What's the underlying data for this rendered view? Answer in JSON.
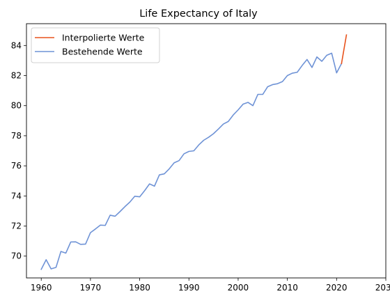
{
  "chart_data": {
    "type": "line",
    "title": "Life Expectancy of Italy",
    "xlabel": "",
    "ylabel": "",
    "xlim": [
      1957.0,
      2030.0
    ],
    "ylim": [
      68.55,
      85.45
    ],
    "xticks": [
      1960,
      1970,
      1980,
      1990,
      2000,
      2010,
      2020,
      2030
    ],
    "yticks": [
      70,
      72,
      74,
      76,
      78,
      80,
      82,
      84
    ],
    "grid": false,
    "legend_position": "top-left",
    "series": [
      {
        "name": "Interpolierte Werte",
        "color": "#e8521c",
        "x": [
          2021,
          2022
        ],
        "y": [
          82.8,
          84.7
        ]
      },
      {
        "name": "Bestehende Werte",
        "color": "#6f93d6",
        "x": [
          1960,
          1961,
          1962,
          1963,
          1964,
          1965,
          1966,
          1967,
          1968,
          1969,
          1970,
          1971,
          1972,
          1973,
          1974,
          1975,
          1976,
          1977,
          1978,
          1979,
          1980,
          1981,
          1982,
          1983,
          1984,
          1985,
          1986,
          1987,
          1988,
          1989,
          1990,
          1991,
          1992,
          1993,
          1994,
          1995,
          1996,
          1997,
          1998,
          1999,
          2000,
          2001,
          2002,
          2003,
          2004,
          2005,
          2006,
          2007,
          2008,
          2009,
          2010,
          2011,
          2012,
          2013,
          2014,
          2015,
          2016,
          2017,
          2018,
          2019,
          2020,
          2021
        ],
        "y": [
          69.12,
          69.76,
          69.15,
          69.25,
          70.31,
          70.2,
          70.94,
          70.95,
          70.78,
          70.8,
          71.56,
          71.8,
          72.06,
          72.04,
          72.72,
          72.65,
          72.96,
          73.29,
          73.59,
          73.98,
          73.94,
          74.35,
          74.8,
          74.65,
          75.4,
          75.47,
          75.8,
          76.2,
          76.35,
          76.8,
          76.96,
          77.0,
          77.39,
          77.7,
          77.9,
          78.14,
          78.45,
          78.78,
          78.95,
          79.38,
          79.72,
          80.1,
          80.22,
          80.0,
          80.75,
          80.75,
          81.26,
          81.4,
          81.46,
          81.6,
          82.0,
          82.16,
          82.22,
          82.67,
          83.07,
          82.54,
          83.24,
          82.95,
          83.35,
          83.49,
          82.18,
          82.8
        ]
      }
    ]
  }
}
